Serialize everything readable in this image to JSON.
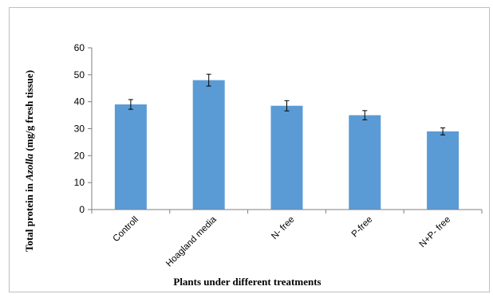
{
  "chart_data": {
    "type": "bar",
    "categories": [
      "Controll",
      "Hoagland media",
      "N- free",
      "P-free",
      "N+P- free"
    ],
    "values": [
      39.0,
      48.0,
      38.5,
      35.0,
      29.0
    ],
    "errors": [
      1.8,
      2.2,
      1.9,
      1.7,
      1.3
    ],
    "xlabel": "Plants under different treatments",
    "ylabel_prefix": "Total protein in ",
    "ylabel_italic": "Azolla",
    "ylabel_suffix": " (mg/g fresh tissue)",
    "ylim": [
      0,
      60
    ],
    "yticks": [
      0,
      10,
      20,
      30,
      40,
      50,
      60
    ],
    "bar_color": "#5b9bd5",
    "grid": false,
    "legend": "none"
  }
}
